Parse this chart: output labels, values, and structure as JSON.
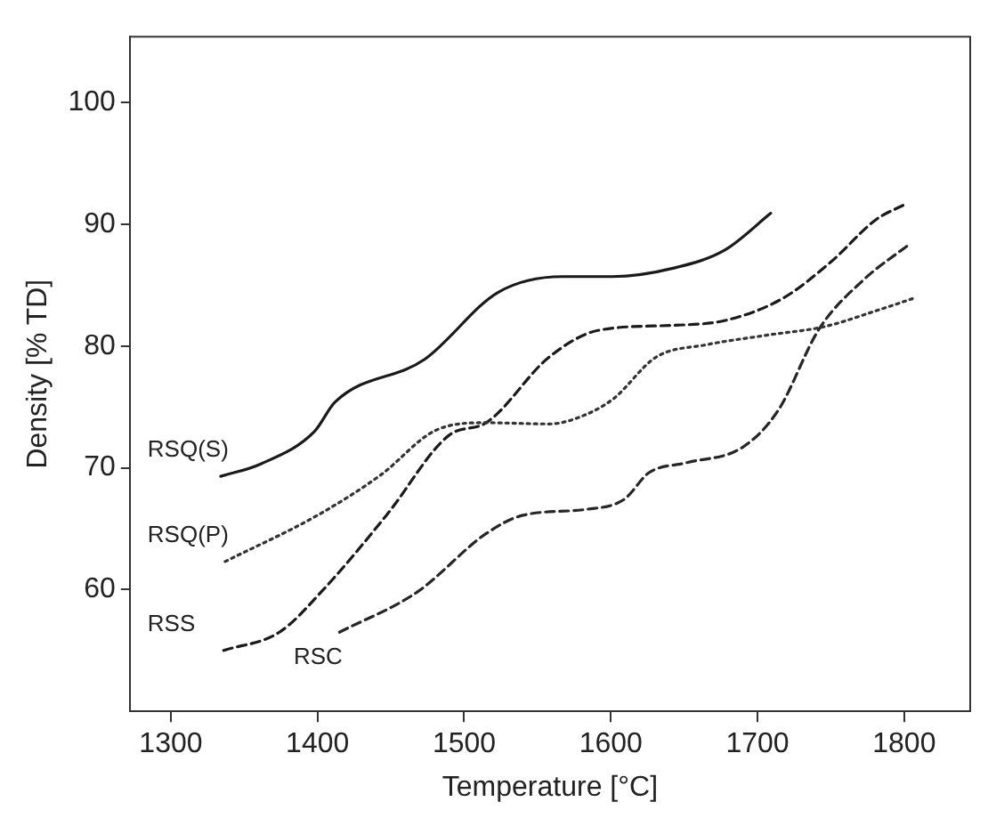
{
  "chart_data": {
    "type": "line",
    "xlabel": "Temperature [°C]",
    "ylabel": "Density [% TD]",
    "xlim": [
      1272,
      1845
    ],
    "ylim": [
      50,
      105.4
    ],
    "xticks": [
      1300,
      1400,
      1500,
      1600,
      1700,
      1800
    ],
    "yticks": [
      60,
      70,
      80,
      90,
      100
    ],
    "grid": false,
    "legend": false,
    "marker": "none",
    "series": [
      {
        "name": "RSQ(S)",
        "color": "#1a1a1a",
        "line_style": "solid",
        "x": [
          1334,
          1361,
          1398,
          1412,
          1473,
          1523,
          1567,
          1601,
          1643,
          1678,
          1709
        ],
        "values": [
          69.3,
          70.3,
          73,
          75.4,
          78.9,
          84.4,
          85.7,
          85.7,
          86.4,
          87.9,
          90.9
        ]
      },
      {
        "name": "RSQ(P)",
        "color": "#333333",
        "line_style": "dotted",
        "x": [
          1337,
          1400,
          1443,
          1481,
          1515,
          1558,
          1575,
          1601,
          1631,
          1665,
          1707,
          1746,
          1781,
          1806
        ],
        "values": [
          62.3,
          66.1,
          69.4,
          73.1,
          73.7,
          73.6,
          74,
          75.6,
          79.1,
          80.1,
          80.9,
          81.6,
          82.9,
          83.9
        ]
      },
      {
        "name": "RSS",
        "color": "#1a1a1a",
        "line_style": "dashed",
        "x": [
          1336,
          1374,
          1404,
          1447,
          1490,
          1515,
          1558,
          1592,
          1643,
          1678,
          1717,
          1750,
          1781,
          1800
        ],
        "values": [
          55,
          56.5,
          60,
          66.1,
          72.7,
          73.7,
          79.1,
          81.3,
          81.7,
          82.1,
          83.9,
          86.9,
          90.4,
          91.6
        ]
      },
      {
        "name": "RSC",
        "color": "#262626",
        "line_style": "dashed",
        "x": [
          1415,
          1468,
          1515,
          1540,
          1584,
          1609,
          1626,
          1651,
          1690,
          1714,
          1742,
          1772,
          1804
        ],
        "values": [
          56.5,
          59.8,
          64.6,
          66.1,
          66.6,
          67.4,
          69.6,
          70.4,
          71.7,
          74.7,
          81.4,
          85.4,
          88.4
        ]
      }
    ]
  }
}
